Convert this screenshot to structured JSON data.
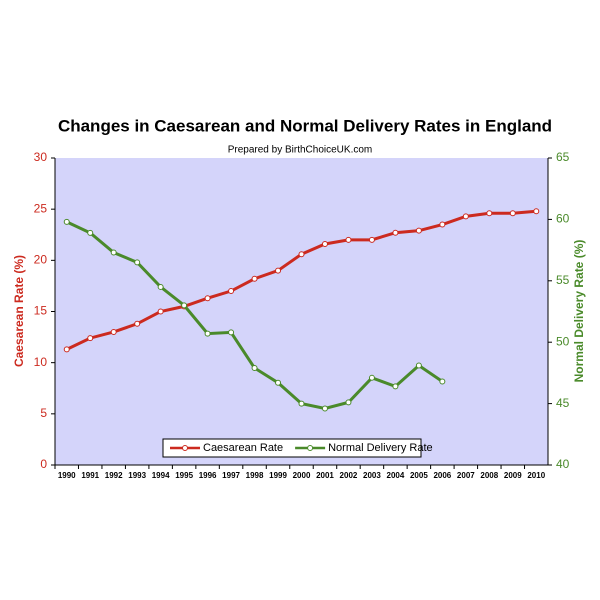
{
  "chart_data": {
    "type": "line",
    "title": "Changes in Caesarean and Normal Delivery Rates in England",
    "subtitle": "Prepared by BirthChoiceUK.com",
    "y_label": "Caesarean Rate (%)",
    "y2_label": "Normal Delivery Rate (%)",
    "categories": [
      "1990",
      "1991",
      "1992",
      "1993",
      "1994",
      "1995",
      "1996",
      "1997",
      "1998",
      "1999",
      "2000",
      "2001",
      "2002",
      "2003",
      "2004",
      "2005",
      "2006",
      "2007",
      "2008",
      "2009",
      "2010"
    ],
    "series": [
      {
        "name": "Caesarean Rate",
        "color": "#cc2a1f",
        "axis": "y",
        "values": [
          11.3,
          12.4,
          13.0,
          13.8,
          15.0,
          15.5,
          16.3,
          17.0,
          18.2,
          19.0,
          20.6,
          21.6,
          22.0,
          22.0,
          22.7,
          22.9,
          23.5,
          24.3,
          24.6,
          24.6,
          24.8
        ]
      },
      {
        "name": "Normal Delivery Rate",
        "color": "#4a8a2a",
        "axis": "y2",
        "values": [
          59.8,
          58.9,
          57.3,
          56.5,
          54.5,
          53.0,
          50.7,
          50.8,
          47.9,
          46.7,
          45.0,
          44.6,
          45.1,
          47.1,
          46.4,
          48.1,
          46.8,
          null,
          null,
          null,
          null
        ]
      }
    ],
    "ylim": [
      0,
      30
    ],
    "yticks": [
      0,
      5,
      10,
      15,
      20,
      25,
      30
    ],
    "y2lim": [
      40,
      65
    ],
    "y2ticks": [
      40,
      45,
      50,
      55,
      60,
      65
    ],
    "legend": "bottom"
  }
}
